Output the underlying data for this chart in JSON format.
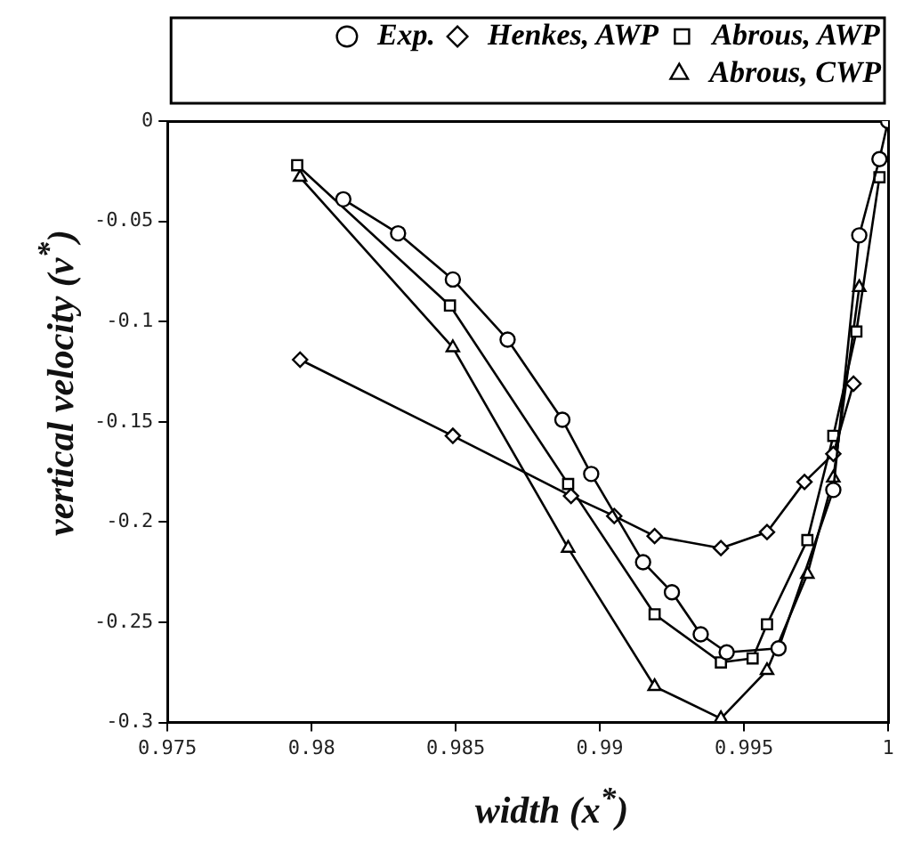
{
  "chart_data": {
    "type": "line",
    "xlabel": "width (x$^{*}$)",
    "ylabel": "vertical velocity (v$^{*}$)",
    "xlim": [
      0.975,
      1
    ],
    "xticks": [
      0.975,
      0.98,
      0.985,
      0.99,
      0.995,
      1
    ],
    "ylim": [
      -0.3,
      0
    ],
    "yticks": [
      0,
      -0.05,
      -0.1,
      -0.15,
      -0.2,
      -0.25,
      -0.3
    ],
    "grid": false,
    "legend": "top right",
    "line_style": "solid",
    "series": [
      {
        "name": "Exp.",
        "color": "#000000",
        "marker": "circle",
        "x": [
          0.9811,
          0.983,
          0.9849,
          0.9868,
          0.9887,
          0.9897,
          0.9915,
          0.9925,
          0.9935,
          0.9944,
          0.9962,
          0.9981,
          0.999,
          0.9997,
          1
        ],
        "values": [
          -0.039,
          -0.056,
          -0.079,
          -0.109,
          -0.149,
          -0.176,
          -0.22,
          -0.235,
          -0.256,
          -0.265,
          -0.263,
          -0.184,
          -0.057,
          -0.019,
          0
        ]
      },
      {
        "name": "Henkes, AWP",
        "color": "#000000",
        "marker": "diamond",
        "x": [
          0.9796,
          0.9849,
          0.989,
          0.9905,
          0.9919,
          0.9942,
          0.9958,
          0.9971,
          0.9981,
          0.9988
        ],
        "values": [
          -0.119,
          -0.157,
          -0.187,
          -0.197,
          -0.207,
          -0.213,
          -0.205,
          -0.18,
          -0.166,
          -0.131
        ]
      },
      {
        "name": "Abrous, AWP",
        "color": "#000000",
        "marker": "square",
        "x": [
          0.9795,
          0.9848,
          0.9889,
          0.9919,
          0.9942,
          0.9953,
          0.9958,
          0.9972,
          0.9981,
          0.9989,
          0.9997
        ],
        "values": [
          -0.022,
          -0.092,
          -0.181,
          -0.246,
          -0.27,
          -0.268,
          -0.251,
          -0.209,
          -0.157,
          -0.105,
          -0.028
        ]
      },
      {
        "name": "Abrous, CWP",
        "color": "#000000",
        "marker": "triangle",
        "x": [
          0.9796,
          0.9849,
          0.9889,
          0.9919,
          0.9942,
          0.9958,
          0.9972,
          0.9981,
          0.999
        ],
        "values": [
          -0.028,
          -0.113,
          -0.213,
          -0.282,
          -0.298,
          -0.274,
          -0.226,
          -0.178,
          -0.083
        ]
      }
    ]
  }
}
